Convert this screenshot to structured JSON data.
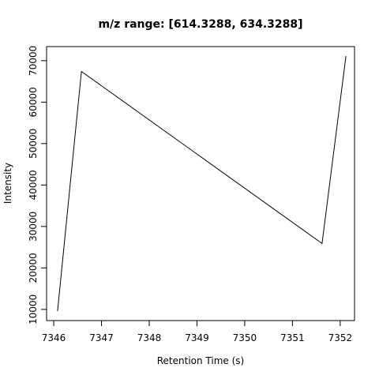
{
  "chart_data": {
    "type": "line",
    "title": "m/z range: [614.3288, 634.3288]",
    "xlabel": "Retention Time (s)",
    "ylabel": "Intensity",
    "x": [
      7346.08,
      7346.58,
      7351.62,
      7352.12
    ],
    "series": [
      {
        "values": [
          9600,
          67400,
          25900,
          71100
        ]
      }
    ],
    "xlim": [
      7345.85,
      7352.3
    ],
    "ylim": [
      7300,
      73400
    ],
    "xticks": [
      7346,
      7347,
      7348,
      7349,
      7350,
      7351,
      7352
    ],
    "yticks": [
      10000,
      20000,
      30000,
      40000,
      50000,
      60000,
      70000
    ],
    "grid": false,
    "line_color": "#000000"
  }
}
